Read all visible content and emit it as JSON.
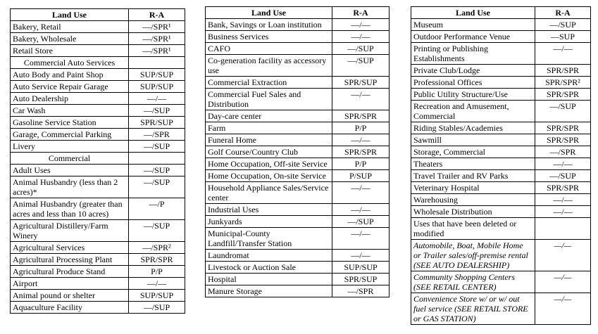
{
  "tables": [
    {
      "header": [
        "Land Use",
        "R-A"
      ],
      "rows": [
        [
          "Bakery, Retail",
          "—/SPR¹"
        ],
        [
          "Bakery, Wholesale",
          "—/SPR¹"
        ],
        [
          "Retail Store",
          "—/SPR¹"
        ],
        [
          "Commercial Auto Services"
        ],
        [
          "Auto Body and Paint Shop",
          "SUP/SUP"
        ],
        [
          "Auto Service Repair Garage",
          "SUP/SUP"
        ],
        [
          "Auto Dealership",
          "—/—"
        ],
        [
          "Car Wash",
          "—/SUP"
        ],
        [
          "Gasoline Service Station",
          "SPR/SUP"
        ],
        [
          "Garage, Commercial Parking",
          "—/SPR"
        ],
        [
          "Livery",
          "—/SUP"
        ],
        [
          "Commercial"
        ],
        [
          "Adult Uses",
          "—/SUP"
        ],
        [
          "Animal Husbandry (less than 2 acres)*",
          "—/SUP"
        ],
        [
          "Animal Husbandry (greater than acres and less than 10 acres)",
          "—/P"
        ],
        [
          "Agricultural Distillery/Farm Winery",
          "—/SUP"
        ],
        [
          "Agricultural Services",
          "—/SPR²"
        ],
        [
          "Agricultural Processing Plant",
          "SPR/SPR"
        ],
        [
          "Agricultural Produce Stand",
          "P/P"
        ],
        [
          "Airport",
          "—/—"
        ],
        [
          "Animal pound or shelter",
          "SUP/SUP"
        ],
        [
          "Aquaculture Facility",
          "—/SUP"
        ]
      ]
    },
    {
      "header": [
        "Land Use",
        "R-A"
      ],
      "rows": [
        [
          "Bank, Savings or Loan institution",
          "—/—"
        ],
        [
          "Business Services",
          "—/—"
        ],
        [
          "CAFO",
          "—/SUP"
        ],
        [
          "Co-generation facility as accessory use",
          "—/SUP"
        ],
        [
          "Commercial Extraction",
          "SPR/SUP"
        ],
        [
          "Commercial Fuel Sales and Distribution",
          "—/—"
        ],
        [
          "Day-care center",
          "SPR/SPR"
        ],
        [
          "Farm",
          "P/P"
        ],
        [
          "Funeral Home",
          "—/—"
        ],
        [
          "Golf Course/Country Club",
          "SPR/SPR"
        ],
        [
          "Home Occupation, Off-site Service",
          "P/P"
        ],
        [
          "Home Occupation, On-site Service",
          "P/SUP"
        ],
        [
          "Household Appliance Sales/Service center",
          "—/—"
        ],
        [
          "Industrial Uses",
          "—/—"
        ],
        [
          "Junkyards",
          "—/SUP"
        ],
        [
          "Municipal-County Landfill/Transfer Station",
          "—/—"
        ],
        [
          "Laundromat",
          "—/—"
        ],
        [
          "Livestock or Auction Sale",
          "SUP/SUP"
        ],
        [
          "Hospital",
          "SPR/SUP"
        ],
        [
          "Manure Storage",
          "—/SPR"
        ]
      ]
    },
    {
      "header": [
        "Land Use",
        "R-A"
      ],
      "rows": [
        [
          "Museum",
          "—/SUP"
        ],
        [
          "Outdoor Performance Venue",
          "—SUP"
        ],
        [
          "Printing or Publishing Establishments",
          "—/—"
        ],
        [
          "Private Club/Lodge",
          "SPR/SPR"
        ],
        [
          "Professional Offices",
          "SPR/SPR²"
        ],
        [
          "Public Utility Structure/Use",
          "SPR/SPR"
        ],
        [
          "Recreation and Amusement, Commercial",
          "—/SUP"
        ],
        [
          "Riding Stables/Academies",
          "SPR/SPR"
        ],
        [
          "Sawmill",
          "SPR/SPR"
        ],
        [
          "Storage, Commercial",
          "—/SPR"
        ],
        [
          "Theaters",
          "—/—"
        ],
        [
          "Travel Trailer and RV Parks",
          "—/SUP"
        ],
        [
          "Veterinary Hospital",
          "SPR/SPR"
        ],
        [
          "Warehousing",
          "—/—"
        ],
        [
          "Wholesale Distribution",
          "—/—"
        ],
        [
          "Uses that have been deleted or modified"
        ],
        [
          "Automobile, Boat, Mobile Home or Trailer sales/off-premise rental (SEE AUTO DEALERSHIP)",
          "—/—"
        ],
        [
          "Community Shopping Centers (SEE RETAIL CENTER)",
          "—/—"
        ],
        [
          "Convenience Store w/ or w/ out fuel service (SEE RETAIL STORE or GAS STATION)",
          "—/—"
        ]
      ]
    }
  ]
}
